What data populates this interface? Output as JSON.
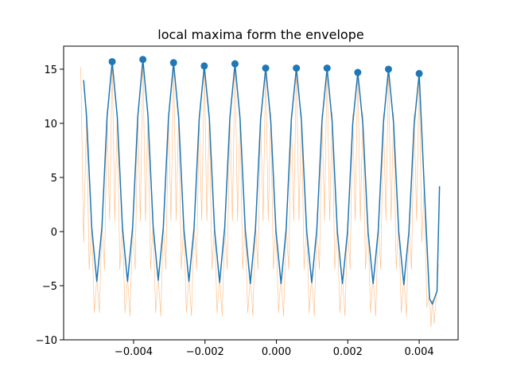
{
  "chart_data": {
    "type": "line",
    "title": "local maxima form the envelope",
    "xlim": [
      -0.00596,
      0.00509
    ],
    "ylim": [
      -10,
      17.13
    ],
    "xticks": [
      {
        "value": -0.004,
        "label": "−0.004"
      },
      {
        "value": -0.002,
        "label": "−0.002"
      },
      {
        "value": 0,
        "label": "0.000"
      },
      0.002,
      0.004
    ],
    "yticks": [
      {
        "value": -10,
        "label": "−10"
      },
      {
        "value": -5,
        "label": "−5"
      },
      0,
      5,
      10,
      15
    ],
    "series": [
      {
        "type": "line",
        "color": "#ff7f0e",
        "x": [
          -0.00548,
          -0.0054,
          -0.005317,
          -0.005245,
          -0.005173,
          -0.005102,
          -0.00503,
          -0.004958,
          -0.004887,
          -0.004815,
          -0.004743,
          -0.004672,
          -0.0046,
          -0.004528,
          -0.004457,
          -0.004385,
          -0.004313,
          -0.004242,
          -0.00417,
          -0.004098,
          -0.004027,
          -0.003955,
          -0.003883,
          -0.003812,
          -0.00374,
          -0.003668,
          -0.003597,
          -0.003525,
          -0.003453,
          -0.003382,
          -0.00331,
          -0.003238,
          -0.003167,
          -0.003095,
          -0.003023,
          -0.002952,
          -0.00288,
          -0.002808,
          -0.002737,
          -0.002665,
          -0.002593,
          -0.002522,
          -0.00245,
          -0.002378,
          -0.002307,
          -0.002235,
          -0.002163,
          -0.002092,
          -0.00202,
          -0.001948,
          -0.001877,
          -0.001805,
          -0.001733,
          -0.001662,
          -0.00159,
          -0.001518,
          -0.001447,
          -0.001375,
          -0.001303,
          -0.001232,
          -0.00116,
          -0.001088,
          -0.001017,
          -0.000945,
          -0.000873,
          -0.000802,
          -0.00073,
          -0.000658,
          -0.000587,
          -0.000515,
          -0.000443,
          -0.000372,
          -0.0003,
          -0.000228,
          -0.000157,
          -8.5e-05,
          -1.3e-05,
          5.8e-05,
          0.00013,
          0.000202,
          0.000273,
          0.000345,
          0.000417,
          0.000488,
          0.00056,
          0.000632,
          0.000703,
          0.000775,
          0.000847,
          0.000918,
          0.00099,
          0.001062,
          0.001133,
          0.001205,
          0.001277,
          0.001348,
          0.00142,
          0.001492,
          0.001563,
          0.001635,
          0.001707,
          0.001778,
          0.00185,
          0.001922,
          0.001993,
          0.002065,
          0.002137,
          0.002208,
          0.00228,
          0.002352,
          0.002423,
          0.002495,
          0.002567,
          0.002638,
          0.00271,
          0.002782,
          0.002853,
          0.002925,
          0.002997,
          0.003068,
          0.00314,
          0.003212,
          0.003283,
          0.003355,
          0.003427,
          0.003498,
          0.00357,
          0.003642,
          0.003713,
          0.003785,
          0.003857,
          0.003928,
          0.004,
          0.004072,
          0.004143,
          0.004215,
          0.00429,
          0.00433,
          0.00437,
          0.00442,
          0.0045,
          0.00454
        ],
        "values": [
          15.2,
          -1.0,
          11.0,
          -3.5,
          0.8,
          -7.5,
          -4.2,
          -7.5,
          0.8,
          -3.5,
          11.0,
          1.0,
          16.0,
          1.0,
          11.0,
          -3.5,
          0.8,
          -7.5,
          -4.2,
          -7.8,
          0.8,
          -3.5,
          10.9,
          1.0,
          16.2,
          1.0,
          11.0,
          -3.5,
          0.8,
          -7.5,
          -4.2,
          -7.8,
          0.8,
          -3.5,
          10.9,
          1.0,
          15.9,
          1.0,
          11.0,
          -3.5,
          0.8,
          -7.5,
          -4.2,
          -7.8,
          0.8,
          -3.5,
          10.9,
          1.0,
          15.6,
          1.0,
          11.0,
          -3.5,
          0.8,
          -7.5,
          -4.2,
          -7.8,
          0.8,
          -3.5,
          10.9,
          1.0,
          15.8,
          1.0,
          11.0,
          -3.5,
          0.8,
          -7.5,
          -4.2,
          -7.8,
          0.8,
          -3.5,
          10.9,
          1.0,
          15.4,
          1.0,
          11.0,
          -3.5,
          0.8,
          -7.5,
          -4.2,
          -7.8,
          0.8,
          -3.5,
          10.9,
          1.0,
          15.4,
          1.0,
          11.0,
          -3.5,
          0.8,
          -7.5,
          -4.2,
          -7.8,
          0.8,
          -3.5,
          10.9,
          1.0,
          15.4,
          1.0,
          11.0,
          -3.5,
          0.8,
          -7.5,
          -4.2,
          -7.8,
          0.8,
          -3.5,
          10.9,
          1.0,
          15.0,
          1.0,
          11.0,
          -3.5,
          0.8,
          -7.5,
          -4.2,
          -7.8,
          0.8,
          -3.5,
          10.9,
          1.0,
          15.3,
          1.0,
          11.0,
          -3.5,
          0.8,
          -7.5,
          -4.2,
          -7.8,
          0.8,
          -3.5,
          10.9,
          1.0,
          15.0,
          -1.0,
          4.5,
          -7.0,
          -5.8,
          -8.8,
          -6.3,
          -8.5,
          -5.0,
          -3.0
        ]
      },
      {
        "type": "line",
        "color": "#1f77b4",
        "x": [
          -0.0054,
          -0.005317,
          -0.005173,
          -0.00503,
          -0.004887,
          -0.004743,
          -0.0046,
          -0.004457,
          -0.004313,
          -0.00417,
          -0.004027,
          -0.003883,
          -0.00374,
          -0.003597,
          -0.003453,
          -0.00331,
          -0.003167,
          -0.003023,
          -0.00288,
          -0.002737,
          -0.002593,
          -0.00245,
          -0.002307,
          -0.002163,
          -0.00202,
          -0.001877,
          -0.001733,
          -0.00159,
          -0.001447,
          -0.001303,
          -0.00116,
          -0.001017,
          -0.000873,
          -0.00073,
          -0.000587,
          -0.000443,
          -0.0003,
          -0.000157,
          -1.3e-05,
          0.00013,
          0.000273,
          0.000417,
          0.00056,
          0.000703,
          0.000847,
          0.00099,
          0.001133,
          0.001277,
          0.00142,
          0.001563,
          0.001707,
          0.00185,
          0.001993,
          0.002137,
          0.00228,
          0.002423,
          0.002567,
          0.00271,
          0.002853,
          0.002997,
          0.00314,
          0.003283,
          0.003427,
          0.00357,
          0.003713,
          0.003857,
          0.004,
          0.004143,
          0.00429,
          0.00437,
          0.0045,
          0.00457
        ],
        "values": [
          14.0,
          10.6,
          0.4,
          -4.6,
          0.4,
          10.6,
          15.7,
          10.6,
          0.4,
          -4.6,
          0.4,
          10.6,
          15.9,
          10.7,
          0.5,
          -4.5,
          0.4,
          10.5,
          15.6,
          10.5,
          0.3,
          -4.6,
          0.3,
          10.4,
          15.3,
          10.4,
          0.2,
          -4.7,
          0.4,
          10.5,
          15.5,
          10.4,
          0.2,
          -4.8,
          0.2,
          10.3,
          15.1,
          10.2,
          0.1,
          -4.8,
          0.2,
          10.3,
          15.1,
          10.2,
          0.1,
          -4.7,
          0.2,
          10.2,
          15.1,
          10.1,
          0.0,
          -4.8,
          0.0,
          9.9,
          14.7,
          9.9,
          0.0,
          -4.8,
          0.1,
          10.0,
          15.0,
          10.0,
          0.0,
          -4.9,
          0.0,
          9.8,
          14.6,
          4.0,
          -6.2,
          -6.7,
          -5.5,
          4.2
        ]
      },
      {
        "type": "scatter",
        "color": "#1f77b4",
        "x": [
          -0.0046,
          -0.00374,
          -0.00288,
          -0.00202,
          -0.00116,
          -0.0003,
          0.00056,
          0.00142,
          0.00228,
          0.00314,
          0.004
        ],
        "values": [
          15.7,
          15.9,
          15.6,
          15.3,
          15.5,
          15.1,
          15.1,
          15.1,
          14.7,
          15.0,
          14.6
        ]
      }
    ]
  }
}
